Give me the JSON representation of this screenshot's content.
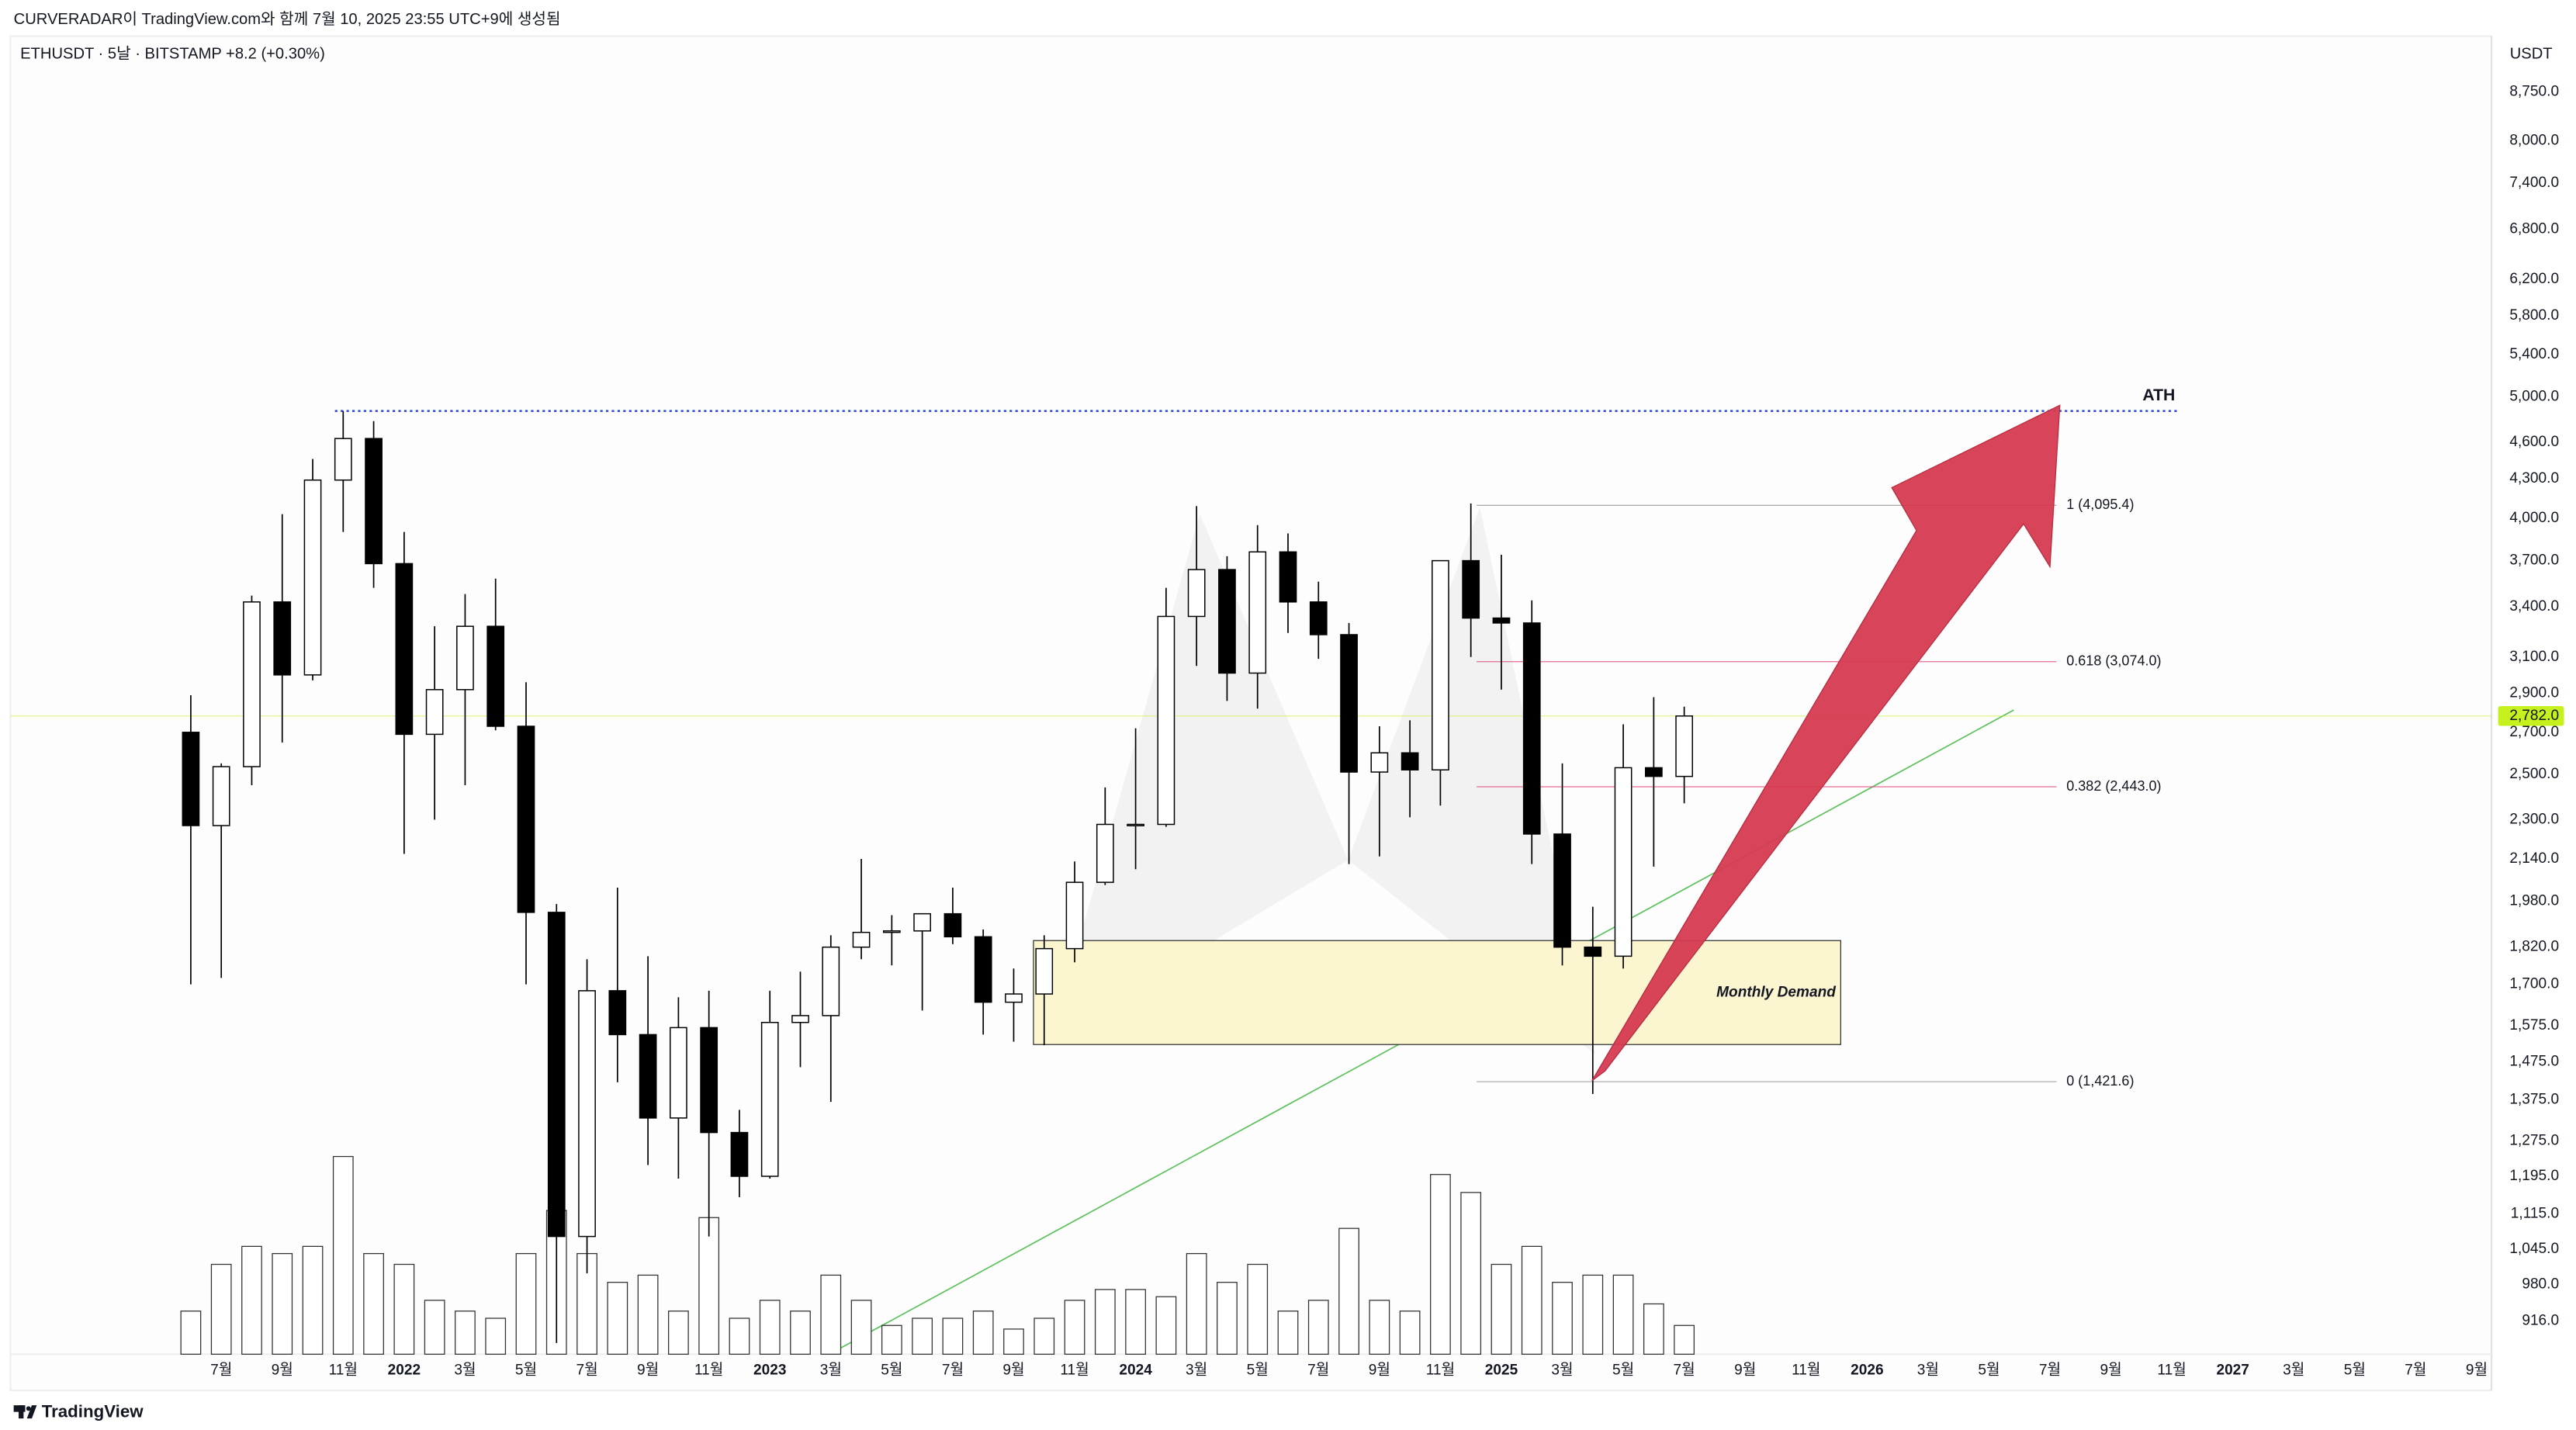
{
  "chart_data": {
    "type": "candlestick",
    "caption": "CURVERADAR이 TradingView.com와 함께 7월 10, 2025 23:55 UTC+9에 생성됨",
    "title": "ETHUSDT · 5날 · BITSTAMP  +8.2 (+0.30%)",
    "unit": "USDT",
    "watermark": "TradingView",
    "log_scale": true,
    "grid": false,
    "up_color": "#ffffff",
    "down_color": "#000000",
    "categories": [
      null,
      "7월",
      null,
      "9월",
      null,
      "11월",
      null,
      "2022",
      null,
      "3월",
      null,
      "5월",
      null,
      "7월",
      null,
      "9월",
      null,
      "11월",
      null,
      "2023",
      null,
      "3월",
      null,
      "5월",
      null,
      "7월",
      null,
      "9월",
      null,
      "11월",
      null,
      "2024",
      null,
      "3월",
      null,
      "5월",
      null,
      "7월",
      null,
      "9월",
      null,
      "11월",
      null,
      "2025",
      null,
      "3월",
      null,
      "5월",
      null,
      "7월",
      null,
      "9월",
      null,
      "11월",
      null,
      "2026",
      null,
      "3월",
      null,
      "5월",
      null,
      "7월",
      null,
      "9월",
      null,
      "11월",
      null,
      "2027",
      null,
      "3월",
      null,
      "5월",
      null,
      "7월",
      null,
      "9월"
    ],
    "open": [
      2700,
      2275,
      2535,
      3430,
      3000,
      4290,
      4630,
      3680,
      2690,
      2920,
      3280,
      2730,
      1940,
      1070,
      1680,
      1550,
      1330,
      1570,
      1295,
      1195,
      1585,
      1605,
      1820,
      1870,
      1875,
      1935,
      1855,
      1645,
      1670,
      1815,
      2050,
      2280,
      2280,
      3340,
      3640,
      3010,
      3760,
      3430,
      3230,
      2510,
      2600,
      2520,
      3700,
      3330,
      3300,
      2240,
      1820,
      1790,
      2530,
      2490,
      null,
      null,
      null,
      null,
      null,
      null,
      null,
      null,
      null,
      null,
      null,
      null,
      null,
      null,
      null,
      null,
      null,
      null,
      null,
      null,
      null,
      null,
      null,
      null,
      null,
      null
    ],
    "high": [
      2890,
      2550,
      3470,
      4030,
      4460,
      4870,
      4780,
      3900,
      3280,
      3480,
      3580,
      2960,
      1970,
      1780,
      2030,
      1790,
      1660,
      1680,
      1350,
      1680,
      1740,
      1860,
      2140,
      1930,
      1930,
      2030,
      1880,
      1750,
      1860,
      2130,
      2440,
      2720,
      3520,
      4090,
      3730,
      3950,
      3890,
      3560,
      3300,
      2730,
      2760,
      3680,
      4110,
      3740,
      3440,
      2550,
      1960,
      2740,
      2880,
      2830,
      null,
      null,
      null,
      null,
      null,
      null,
      null,
      null,
      null,
      null,
      null,
      null,
      null,
      null,
      null,
      null,
      null,
      null,
      null,
      null,
      null,
      null,
      null,
      null,
      null,
      null
    ],
    "low": [
      1700,
      1720,
      2450,
      2650,
      2970,
      3900,
      3520,
      2160,
      2300,
      2450,
      2710,
      1700,
      880,
      1000,
      1420,
      1220,
      1190,
      1070,
      1150,
      1190,
      1460,
      1370,
      1780,
      1760,
      1620,
      1830,
      1550,
      1530,
      1520,
      1770,
      2040,
      2100,
      2270,
      3050,
      2860,
      2820,
      3240,
      3090,
      2120,
      2150,
      2310,
      2360,
      3100,
      2920,
      2120,
      1760,
      1390,
      1750,
      2110,
      2370,
      null,
      null,
      null,
      null,
      null,
      null,
      null,
      null,
      null,
      null,
      null,
      null,
      null,
      null,
      null,
      null,
      null,
      null,
      null,
      null,
      null,
      null,
      null,
      null,
      null,
      null
    ],
    "close": [
      2275,
      2535,
      3430,
      3000,
      4290,
      4630,
      3680,
      2690,
      2920,
      3280,
      2730,
      1940,
      1070,
      1680,
      1550,
      1330,
      1570,
      1295,
      1195,
      1585,
      1605,
      1820,
      1870,
      1875,
      1935,
      1855,
      1645,
      1670,
      1815,
      2050,
      2280,
      2280,
      3340,
      3640,
      3010,
      3760,
      3430,
      3230,
      2510,
      2600,
      2520,
      3700,
      3330,
      3300,
      2240,
      1820,
      1790,
      2530,
      2490,
      2782,
      null,
      null,
      null,
      null,
      null,
      null,
      null,
      null,
      null,
      null,
      null,
      null,
      null,
      null,
      null,
      null,
      null,
      null,
      null,
      null,
      null,
      null,
      null,
      null,
      null,
      null
    ],
    "volume": [
      12,
      25,
      30,
      28,
      30,
      55,
      28,
      25,
      15,
      12,
      10,
      28,
      40,
      28,
      20,
      22,
      12,
      38,
      10,
      15,
      12,
      22,
      15,
      8,
      10,
      10,
      12,
      7,
      10,
      15,
      18,
      18,
      16,
      28,
      20,
      25,
      12,
      15,
      35,
      15,
      12,
      50,
      45,
      25,
      30,
      20,
      22,
      22,
      14,
      8,
      null,
      null,
      null,
      null,
      null,
      null,
      null,
      null,
      null,
      null,
      null,
      null,
      null,
      null,
      null,
      null,
      null,
      null,
      null,
      null,
      null,
      null,
      null,
      null,
      null,
      null
    ],
    "ylim": [
      862,
      9690
    ],
    "yticks": [
      {
        "value": 916,
        "label": "916.0"
      },
      {
        "value": 980,
        "label": "980.0"
      },
      {
        "value": 1045,
        "label": "1,045.0"
      },
      {
        "value": 1115,
        "label": "1,115.0"
      },
      {
        "value": 1195,
        "label": "1,195.0"
      },
      {
        "value": 1275,
        "label": "1,275.0"
      },
      {
        "value": 1375,
        "label": "1,375.0"
      },
      {
        "value": 1475,
        "label": "1,475.0"
      },
      {
        "value": 1575,
        "label": "1,575.0"
      },
      {
        "value": 1700,
        "label": "1,700.0"
      },
      {
        "value": 1820,
        "label": "1,820.0"
      },
      {
        "value": 1980,
        "label": "1,980.0"
      },
      {
        "value": 2140,
        "label": "2,140.0"
      },
      {
        "value": 2300,
        "label": "2,300.0"
      },
      {
        "value": 2500,
        "label": "2,500.0"
      },
      {
        "value": 2700,
        "label": "2,700.0"
      },
      {
        "value": 2900,
        "label": "2,900.0"
      },
      {
        "value": 3100,
        "label": "3,100.0"
      },
      {
        "value": 3400,
        "label": "3,400.0"
      },
      {
        "value": 3700,
        "label": "3,700.0"
      },
      {
        "value": 4000,
        "label": "4,000.0"
      },
      {
        "value": 4300,
        "label": "4,300.0"
      },
      {
        "value": 4600,
        "label": "4,600.0"
      },
      {
        "value": 5000,
        "label": "5,000.0"
      },
      {
        "value": 5400,
        "label": "5,400.0"
      },
      {
        "value": 5800,
        "label": "5,800.0"
      },
      {
        "value": 6200,
        "label": "6,200.0"
      },
      {
        "value": 6800,
        "label": "6,800.0"
      },
      {
        "value": 7400,
        "label": "7,400.0"
      },
      {
        "value": 8000,
        "label": "8,000.0"
      },
      {
        "value": 8750,
        "label": "8,750.0"
      }
    ],
    "last_price": {
      "value": 2782,
      "label": "2,782.0",
      "color": "#c6f01e"
    },
    "ath": {
      "value": 4870,
      "label": "ATH",
      "color": "#2f4fd0"
    },
    "demand_zone": {
      "low": 1522,
      "high": 1842,
      "label": "Monthly Demand",
      "color": "#fbf6cf"
    },
    "fib_levels": [
      {
        "value": 4095.4,
        "label": "1 (4,095.4)",
        "color": "#9a9a9a"
      },
      {
        "value": 3074.0,
        "label": "0.618 (3,074.0)",
        "color": "#e0487a"
      },
      {
        "value": 2443.0,
        "label": "0.382 (2,443.0)",
        "color": "#e0487a"
      },
      {
        "value": 1421.6,
        "label": "0 (1,421.6)",
        "color": "#9a9a9a"
      }
    ]
  }
}
